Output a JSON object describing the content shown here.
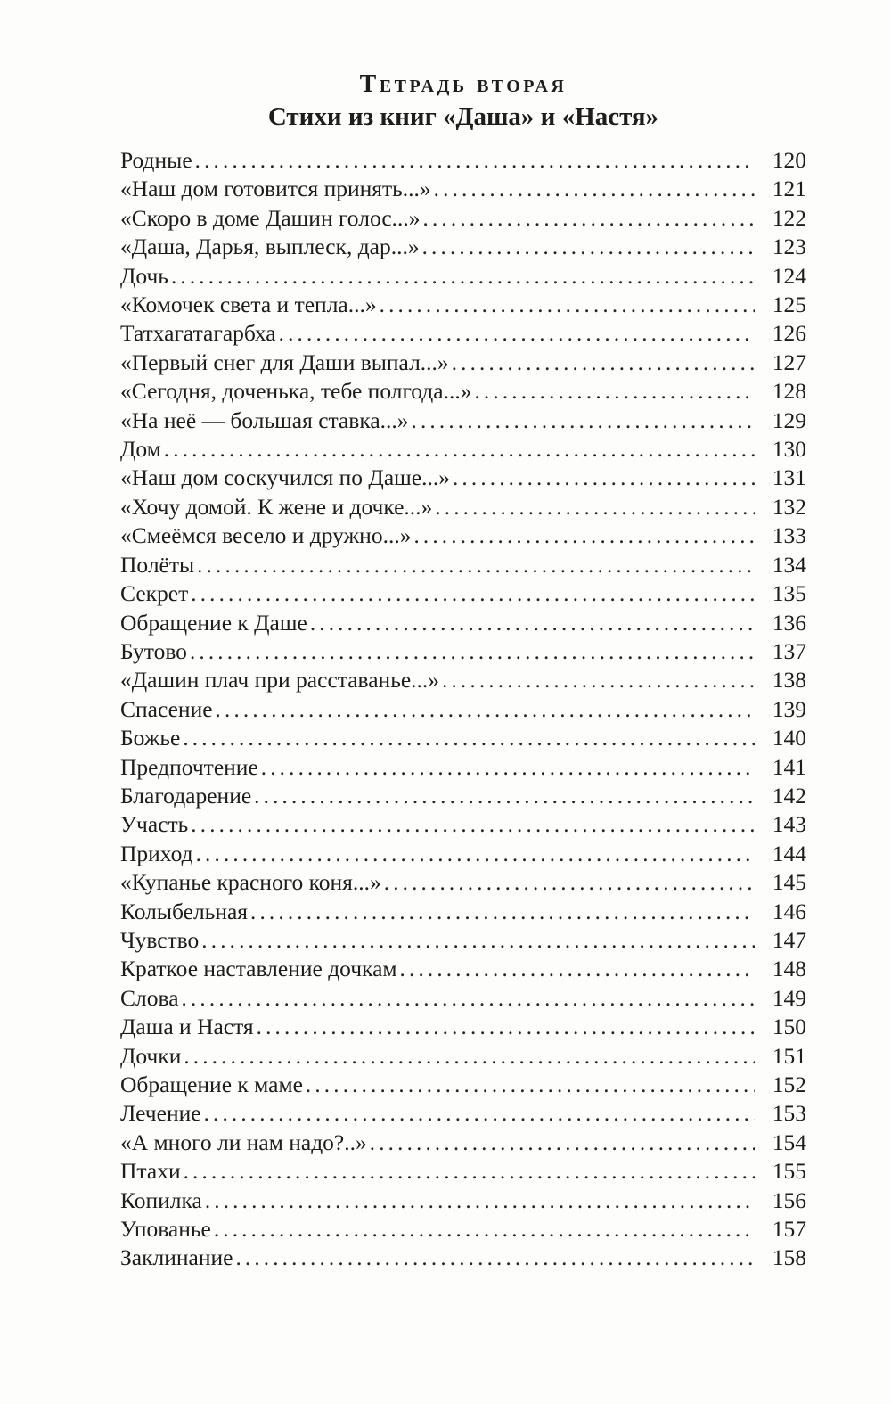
{
  "page": {
    "section_heading": "Тетрадь вторая",
    "section_subheading": "Стихи из книг «Даша» и «Настя»",
    "toc_entries": [
      {
        "title": "Родные",
        "page": "120"
      },
      {
        "title": "«Наш дом готовится принять...»",
        "page": "121"
      },
      {
        "title": "«Скоро в доме Дашин голос...»",
        "page": "122"
      },
      {
        "title": "«Даша, Дарья, выплеск, дар...»",
        "page": "123"
      },
      {
        "title": "Дочь",
        "page": "124"
      },
      {
        "title": "«Комочек света и тепла...»",
        "page": "125"
      },
      {
        "title": "Татхагатагарбха",
        "page": "126"
      },
      {
        "title": "«Первый снег для Даши выпал...»",
        "page": "127"
      },
      {
        "title": "«Сегодня, доченька, тебе полгода...»",
        "page": "128"
      },
      {
        "title": "«На неё — большая ставка...»",
        "page": "129"
      },
      {
        "title": "Дом",
        "page": "130"
      },
      {
        "title": "«Наш дом соскучился по Даше...»",
        "page": "131"
      },
      {
        "title": "«Хочу домой. К жене и дочке...»",
        "page": "132"
      },
      {
        "title": "«Смеёмся весело и дружно...»",
        "page": "133"
      },
      {
        "title": "Полёты",
        "page": "134"
      },
      {
        "title": "Секрет",
        "page": "135"
      },
      {
        "title": "Обращение к Даше",
        "page": "136"
      },
      {
        "title": "Бутово",
        "page": "137"
      },
      {
        "title": "«Дашин плач при расставанье...»",
        "page": "138"
      },
      {
        "title": "Спасение",
        "page": "139"
      },
      {
        "title": "Божье",
        "page": "140"
      },
      {
        "title": "Предпочтение",
        "page": "141"
      },
      {
        "title": "Благодарение",
        "page": "142"
      },
      {
        "title": "Участь",
        "page": "143"
      },
      {
        "title": "Приход",
        "page": "144"
      },
      {
        "title": "«Купанье красного коня...»",
        "page": "145"
      },
      {
        "title": "Колыбельная",
        "page": "146"
      },
      {
        "title": "Чувство",
        "page": "147"
      },
      {
        "title": "Краткое наставление дочкам",
        "page": "148"
      },
      {
        "title": "Слова",
        "page": "149"
      },
      {
        "title": "Даша и Настя",
        "page": "150"
      },
      {
        "title": "Дочки",
        "page": "151"
      },
      {
        "title": "Обращение к маме",
        "page": "152"
      },
      {
        "title": "Лечение",
        "page": "153"
      },
      {
        "title": "«А много ли нам надо?..»",
        "page": "154"
      },
      {
        "title": "Птахи",
        "page": "155"
      },
      {
        "title": "Копилка",
        "page": "156"
      },
      {
        "title": "Упованье",
        "page": "157"
      },
      {
        "title": "Заклинание",
        "page": "158"
      }
    ]
  }
}
